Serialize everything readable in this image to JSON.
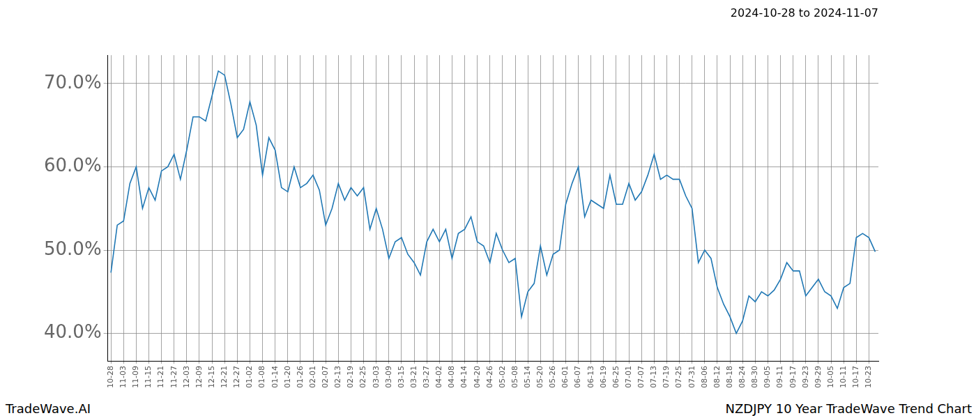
{
  "chart_data": {
    "type": "line",
    "title": "2024-10-28 to 2024-11-07",
    "footer_left": "TradeWave.AI",
    "footer_right": "NZDJPY 10 Year TradeWave Trend Chart",
    "categories": [
      "10-28",
      null,
      "11-03",
      null,
      "11-09",
      null,
      "11-15",
      null,
      "11-21",
      null,
      "11-27",
      null,
      "12-03",
      null,
      "12-09",
      null,
      "12-15",
      null,
      "12-21",
      null,
      "12-27",
      null,
      "01-02",
      null,
      "01-08",
      null,
      "01-14",
      null,
      "01-20",
      null,
      "01-26",
      null,
      "02-01",
      null,
      "02-07",
      null,
      "02-13",
      null,
      "02-19",
      null,
      "02-25",
      null,
      "03-03",
      null,
      "03-09",
      null,
      "03-15",
      null,
      "03-21",
      null,
      "03-27",
      null,
      "04-02",
      null,
      "04-08",
      null,
      "04-14",
      null,
      "04-20",
      null,
      "04-26",
      null,
      "05-02",
      null,
      "05-08",
      null,
      "05-14",
      null,
      "05-20",
      null,
      "05-26",
      null,
      "06-01",
      null,
      "06-07",
      null,
      "06-13",
      null,
      "06-19",
      null,
      "06-25",
      null,
      "07-01",
      null,
      "07-07",
      null,
      "07-13",
      null,
      "07-19",
      null,
      "07-25",
      null,
      "07-31",
      null,
      "08-06",
      null,
      "08-12",
      null,
      "08-18",
      null,
      "08-24",
      null,
      "08-30",
      null,
      "09-05",
      null,
      "09-11",
      null,
      "09-17",
      null,
      "09-23",
      null,
      "09-29",
      null,
      "10-05",
      null,
      "10-11",
      null,
      "10-17",
      null,
      "10-23",
      null
    ],
    "values": [
      47.3,
      53,
      53.5,
      58,
      60,
      55,
      57.5,
      56,
      59.5,
      60,
      61.5,
      58.5,
      62,
      66,
      66,
      65.5,
      68.5,
      71.5,
      71,
      67.5,
      63.5,
      64.5,
      67.8,
      65,
      59,
      63.5,
      62,
      57.5,
      57,
      60,
      57.5,
      58,
      59,
      57.2,
      53,
      55,
      58,
      56,
      57.5,
      56.5,
      57.5,
      52.5,
      55,
      52.5,
      49,
      51,
      51.5,
      49.5,
      48.5,
      47,
      51,
      52.5,
      51,
      52.5,
      49,
      52,
      52.5,
      54,
      51,
      50.5,
      48.5,
      52,
      50,
      48.5,
      49,
      42,
      45,
      46,
      50.5,
      47,
      49.5,
      50,
      55.5,
      58,
      60,
      54,
      56,
      55.5,
      55,
      59,
      55.5,
      55.5,
      58,
      56,
      57,
      59,
      61.5,
      58.5,
      59,
      58.5,
      58.5,
      56.5,
      55,
      48.5,
      50,
      49,
      45.5,
      43.5,
      42,
      40,
      41.5,
      44.5,
      43.8,
      45,
      44.5,
      45.2,
      46.5,
      48.5,
      47.5,
      47.5,
      44.5,
      45.5,
      46.5,
      45,
      44.5,
      43,
      45.5,
      46,
      51.5,
      52,
      51.5,
      49.8
    ],
    "color": "#1f77b4",
    "ylim": [
      36.7,
      73.4
    ],
    "yticks": [
      {
        "value": 40,
        "label": "40.0%"
      },
      {
        "value": 50,
        "label": "50.0%"
      },
      {
        "value": 60,
        "label": "60.0%"
      },
      {
        "value": 70,
        "label": "70.0%"
      }
    ],
    "grid": true
  }
}
